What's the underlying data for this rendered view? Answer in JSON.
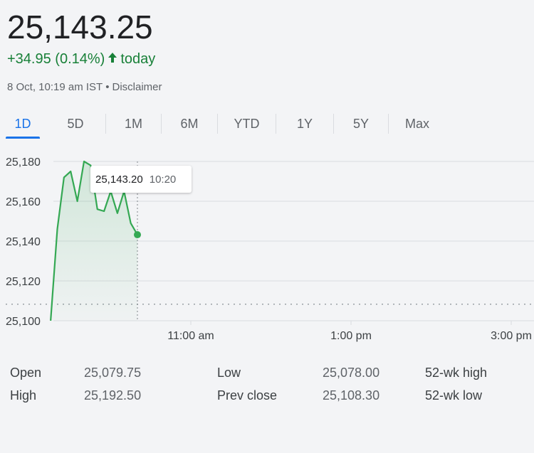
{
  "quote": {
    "price": "25,143.25",
    "change": "+34.95 (0.14%)",
    "change_arrow": "arrow-up-icon",
    "change_period": "today",
    "timestamp": "8 Oct, 10:19 am IST",
    "separator": "•",
    "disclaimer": "Disclaimer"
  },
  "colors": {
    "positive": "#188038",
    "accent": "#1a73e8",
    "line": "#34a853"
  },
  "tabs": [
    {
      "label": "1D",
      "active": true
    },
    {
      "label": "5D",
      "active": false
    },
    {
      "label": "1M",
      "active": false
    },
    {
      "label": "6M",
      "active": false
    },
    {
      "label": "YTD",
      "active": false
    },
    {
      "label": "1Y",
      "active": false
    },
    {
      "label": "5Y",
      "active": false
    },
    {
      "label": "Max",
      "active": false
    }
  ],
  "tooltip": {
    "value": "25,143.20",
    "time": "10:20"
  },
  "chart_data": {
    "type": "line",
    "yticks": [
      "25,180",
      "25,160",
      "25,140",
      "25,120",
      "25,100"
    ],
    "ylim": [
      25100,
      25180
    ],
    "xticks": [
      "11:00 am",
      "1:00 pm",
      "3:00 pm"
    ],
    "previous_close": 25108.3,
    "series": [
      {
        "x": [
          "09:15",
          "09:20",
          "09:25",
          "09:30",
          "09:35",
          "09:40",
          "09:45",
          "09:50",
          "09:55",
          "10:00",
          "10:05",
          "10:10",
          "10:15",
          "10:20"
        ],
        "values": [
          25100,
          25146,
          25172,
          25175,
          25160,
          25180,
          25178,
          25156,
          25155,
          25165,
          25154,
          25165,
          25149,
          25143.2
        ]
      }
    ],
    "grid": true
  },
  "stats": {
    "open_label": "Open",
    "open_value": "25,079.75",
    "high_label": "High",
    "high_value": "25,192.50",
    "low_label": "Low",
    "low_value": "25,078.00",
    "prev_close_label": "Prev close",
    "prev_close_value": "25,108.30",
    "wk52_high_label": "52-wk high",
    "wk52_low_label": "52-wk low"
  }
}
